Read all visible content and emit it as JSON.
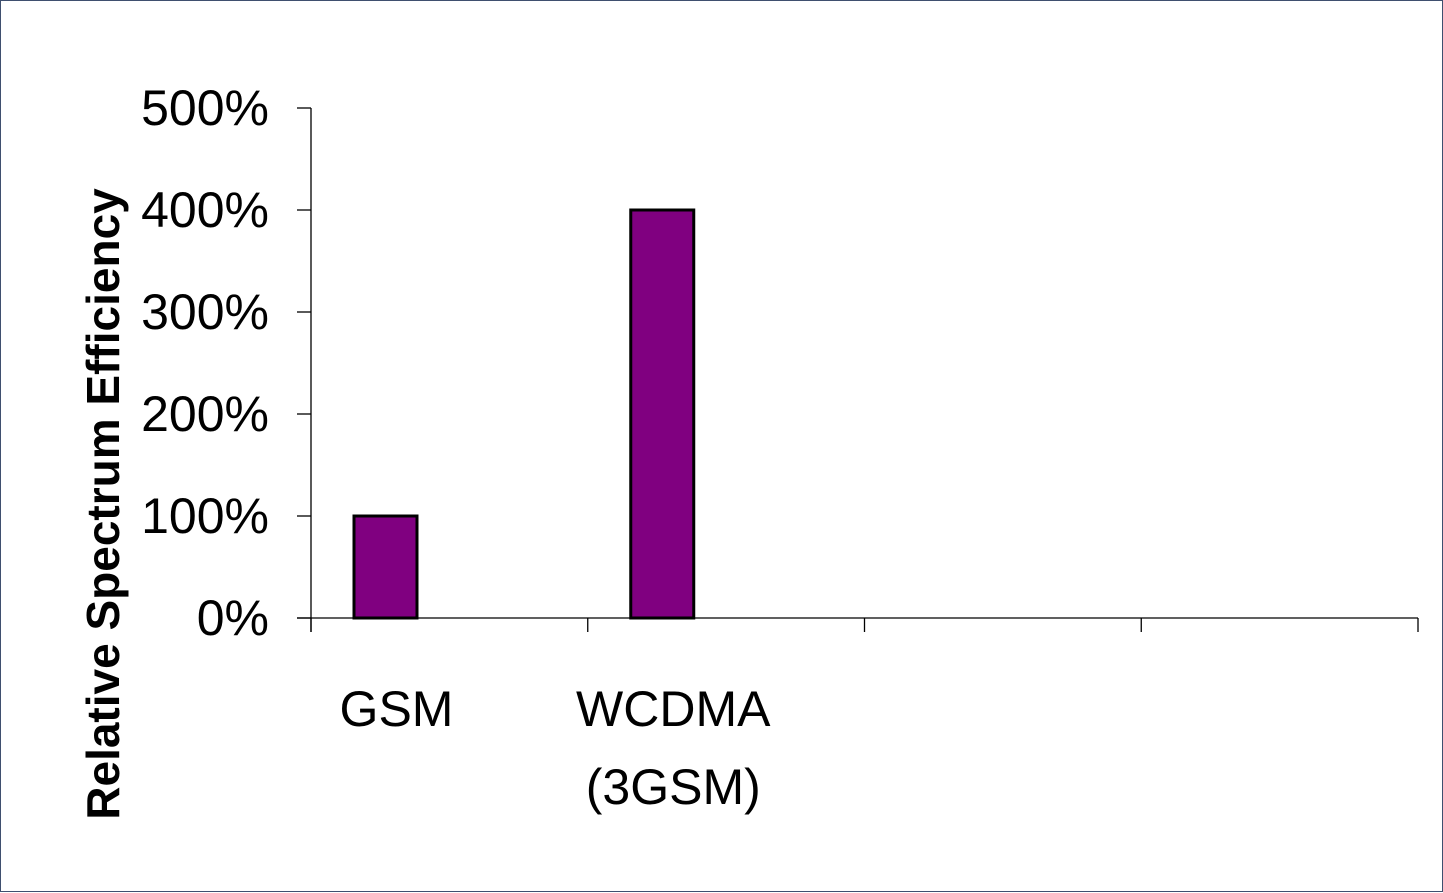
{
  "chart_data": {
    "type": "bar",
    "categories": [
      "GSM",
      "WCDMA\n(3GSM)",
      "",
      ""
    ],
    "values": [
      100,
      400,
      null,
      null
    ],
    "y_tick_labels": [
      "0%",
      "100%",
      "200%",
      "300%",
      "400%",
      "500%"
    ],
    "y_ticks": [
      0,
      100,
      200,
      300,
      400,
      500
    ],
    "ylim": [
      0,
      500
    ],
    "ylabel": "Relative Spectrum Efficiency",
    "xlabel": "",
    "title": "",
    "grid": false,
    "legend": "none",
    "colors": {
      "bar_fill": "#800080",
      "bar_stroke": "#000000",
      "axis": "#000000",
      "frame_border": "#3f4f6f"
    }
  }
}
